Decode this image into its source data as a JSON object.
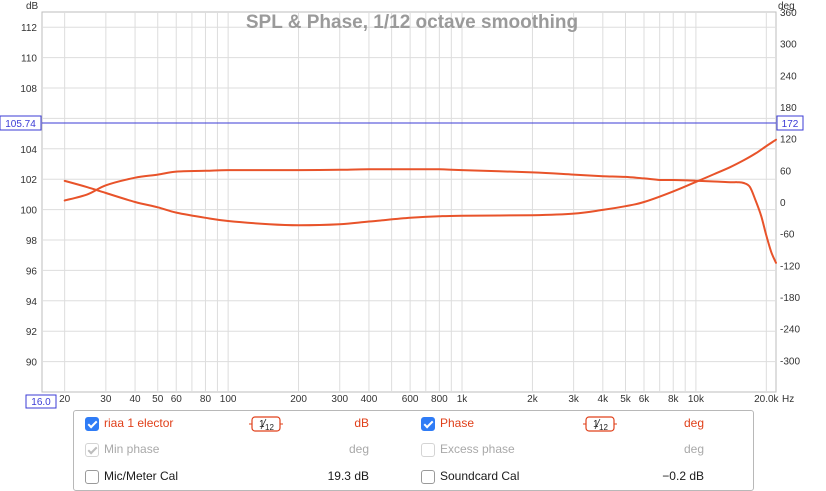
{
  "chart_data": {
    "type": "line",
    "title": "SPL & Phase, 1/12 octave smoothing",
    "left_axis": {
      "unit": "dB",
      "ylim": [
        88.0,
        113.0
      ],
      "ticks": [
        "112",
        "110",
        "108",
        "106",
        "104",
        "102",
        "100",
        "98",
        "96",
        "94",
        "92",
        "90"
      ],
      "tick_values": [
        112,
        110,
        108,
        106,
        104,
        102,
        100,
        98,
        96,
        94,
        92,
        90
      ]
    },
    "right_axis": {
      "unit": "deg",
      "ylim": [
        -360,
        360
      ],
      "ticks": [
        "360",
        "300",
        "240",
        "180",
        "120",
        "60",
        "0",
        "-60",
        "-120",
        "-180",
        "-240",
        "-300"
      ],
      "tick_values": [
        360,
        300,
        240,
        180,
        120,
        60,
        0,
        -60,
        -120,
        -180,
        -240,
        -300
      ]
    },
    "x_axis": {
      "unit": "Hz",
      "scale": "log",
      "xlim": [
        16.0,
        22000
      ],
      "ticks": [
        "20",
        "30",
        "40",
        "50",
        "60",
        "80",
        "100",
        "200",
        "300",
        "400",
        "600",
        "800",
        "1k",
        "2k",
        "3k",
        "4k",
        "5k",
        "6k",
        "8k",
        "10k",
        "20.0k"
      ],
      "tick_values": [
        20,
        30,
        40,
        50,
        60,
        80,
        100,
        200,
        300,
        400,
        600,
        800,
        1000,
        2000,
        3000,
        4000,
        5000,
        6000,
        8000,
        10000,
        20000
      ]
    },
    "cursor": {
      "value_left": "105.74",
      "value_right": "172",
      "x_start": "16.0"
    },
    "grid": true,
    "series": [
      {
        "name": "riaa 1 elector",
        "axis": "left",
        "color": "#e8532a",
        "x": [
          20,
          25,
          30,
          40,
          50,
          60,
          80,
          100,
          150,
          200,
          300,
          400,
          600,
          800,
          1000,
          2000,
          3000,
          4000,
          5000,
          6000,
          7000,
          8000,
          10000,
          12000,
          14000,
          15000,
          16000,
          17000,
          18000,
          19000,
          20000,
          21000,
          22000
        ],
        "y": [
          100.6,
          101.0,
          101.6,
          102.1,
          102.3,
          102.5,
          102.55,
          102.6,
          102.6,
          102.6,
          102.62,
          102.65,
          102.65,
          102.65,
          102.6,
          102.45,
          102.3,
          102.2,
          102.15,
          102.05,
          101.95,
          101.95,
          101.9,
          101.85,
          101.8,
          101.8,
          101.75,
          101.5,
          100.6,
          99.6,
          98.3,
          97.2,
          96.5
        ]
      },
      {
        "name": "Phase",
        "axis": "right",
        "color": "#e8532a",
        "x": [
          20,
          25,
          30,
          40,
          50,
          60,
          80,
          100,
          150,
          200,
          300,
          400,
          600,
          800,
          1000,
          2000,
          3000,
          4000,
          5000,
          6000,
          8000,
          10000,
          12000,
          14000,
          16000,
          18000,
          20000,
          22000
        ],
        "y": [
          40,
          28,
          17,
          0,
          -10,
          -20,
          -30,
          -36,
          -42,
          -44,
          -42,
          -37,
          -30,
          -27,
          -26,
          -25,
          -22,
          -15,
          -8,
          0,
          20,
          38,
          53,
          66,
          79,
          92,
          106,
          118
        ]
      }
    ]
  },
  "controls": {
    "row1": {
      "left_label": "riaa 1  elector",
      "left_smoothing_num": "1",
      "left_smoothing_den": "12",
      "left_unit": "dB",
      "right_label": "Phase",
      "right_smoothing_num": "1",
      "right_smoothing_den": "12",
      "right_unit": "deg"
    },
    "row2": {
      "left_label": "Min phase",
      "left_unit": "deg",
      "right_label": "Excess phase",
      "right_unit": "deg"
    },
    "row3": {
      "left_label": "Mic/Meter Cal",
      "left_value": "19.3 dB",
      "right_label": "Soundcard Cal",
      "right_value": "−0.2 dB"
    }
  },
  "colors": {
    "trace": "#e8532a",
    "cursor": "#3b3bd6",
    "grid": "#dddddd",
    "axis": "#bdbdbd",
    "title": "#9a9a9a",
    "checkbox": "#2f7cf6"
  }
}
